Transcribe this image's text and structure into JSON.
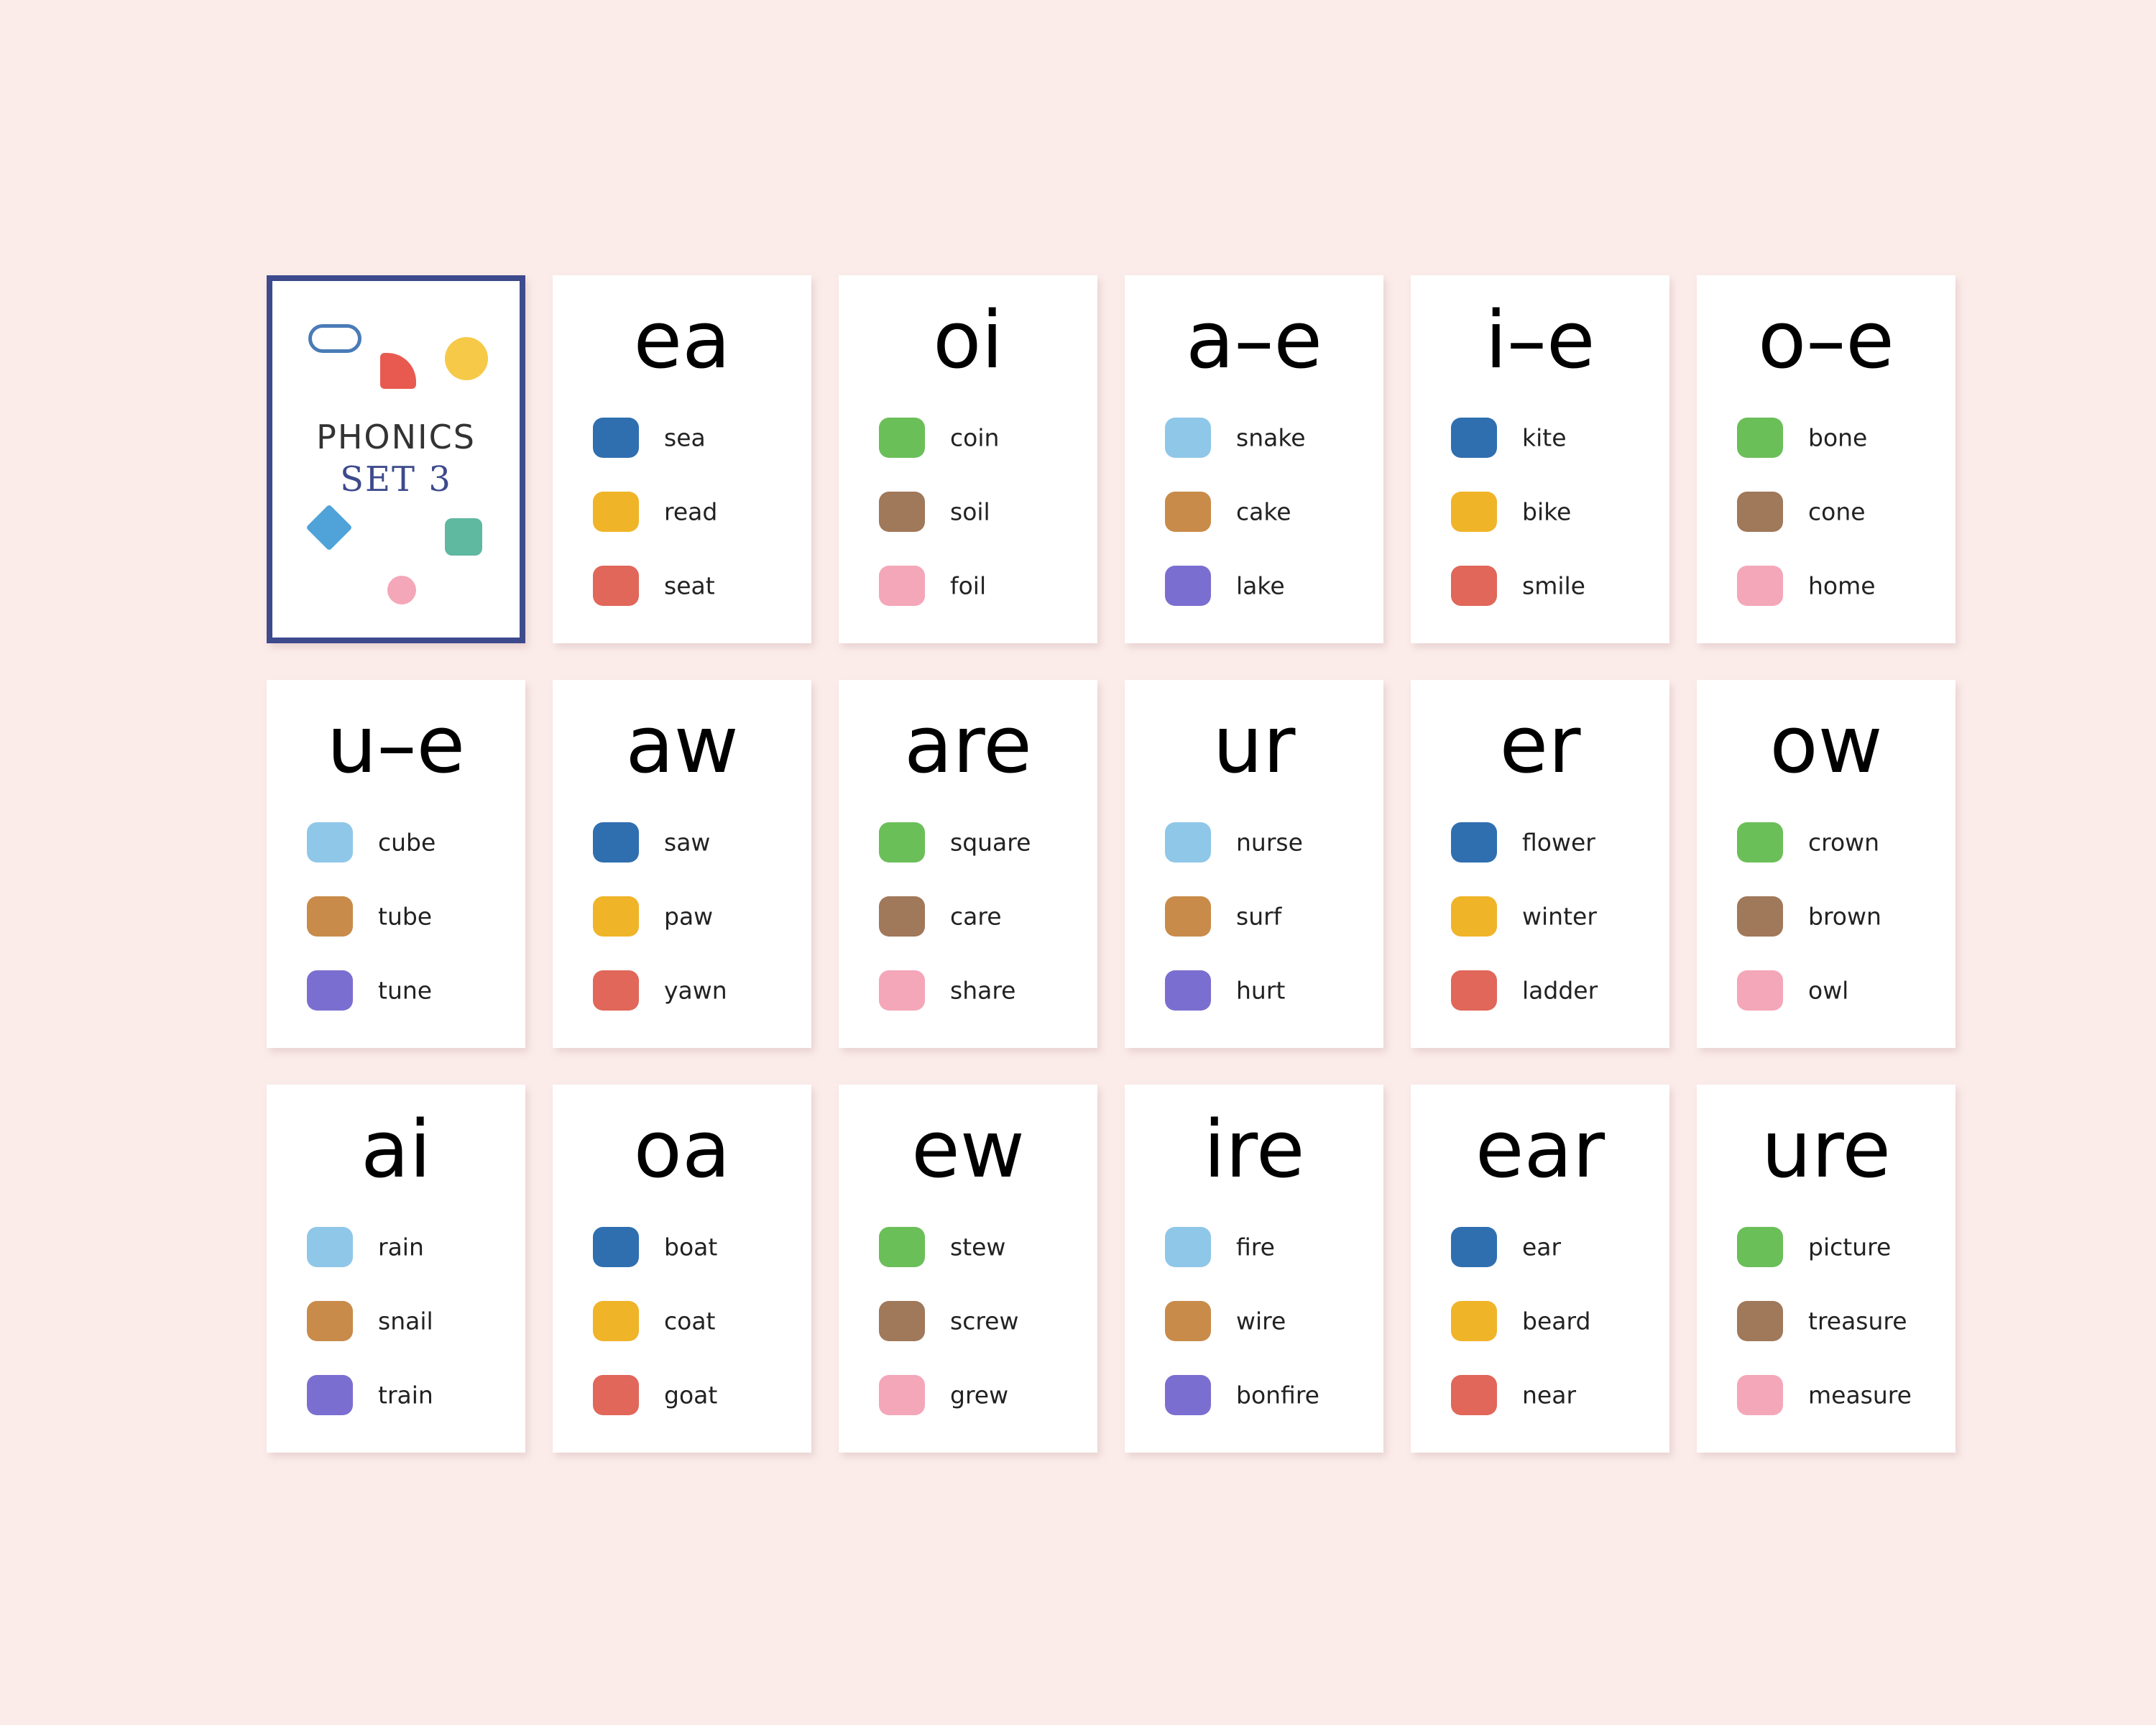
{
  "cover": {
    "title": "PHONICS",
    "subtitle": "SET 3"
  },
  "cards": [
    {
      "sound": "ea",
      "words": [
        "sea",
        "read",
        "seat"
      ]
    },
    {
      "sound": "oi",
      "words": [
        "coin",
        "soil",
        "foil"
      ]
    },
    {
      "sound": "a–e",
      "words": [
        "snake",
        "cake",
        "lake"
      ]
    },
    {
      "sound": "i–e",
      "words": [
        "kite",
        "bike",
        "smile"
      ]
    },
    {
      "sound": "o–e",
      "words": [
        "bone",
        "cone",
        "home"
      ]
    },
    {
      "sound": "u–e",
      "words": [
        "cube",
        "tube",
        "tune"
      ]
    },
    {
      "sound": "aw",
      "words": [
        "saw",
        "paw",
        "yawn"
      ]
    },
    {
      "sound": "are",
      "words": [
        "square",
        "care",
        "share"
      ]
    },
    {
      "sound": "ur",
      "words": [
        "nurse",
        "surf",
        "hurt"
      ]
    },
    {
      "sound": "er",
      "words": [
        "flower",
        "winter",
        "ladder"
      ]
    },
    {
      "sound": "ow",
      "words": [
        "crown",
        "brown",
        "owl"
      ]
    },
    {
      "sound": "ai",
      "words": [
        "rain",
        "snail",
        "train"
      ]
    },
    {
      "sound": "oa",
      "words": [
        "boat",
        "coat",
        "goat"
      ]
    },
    {
      "sound": "ew",
      "words": [
        "stew",
        "screw",
        "grew"
      ]
    },
    {
      "sound": "ire",
      "words": [
        "fire",
        "wire",
        "bonfire"
      ]
    },
    {
      "sound": "ear",
      "words": [
        "ear",
        "beard",
        "near"
      ]
    },
    {
      "sound": "ure",
      "words": [
        "picture",
        "treasure",
        "measure"
      ]
    }
  ]
}
